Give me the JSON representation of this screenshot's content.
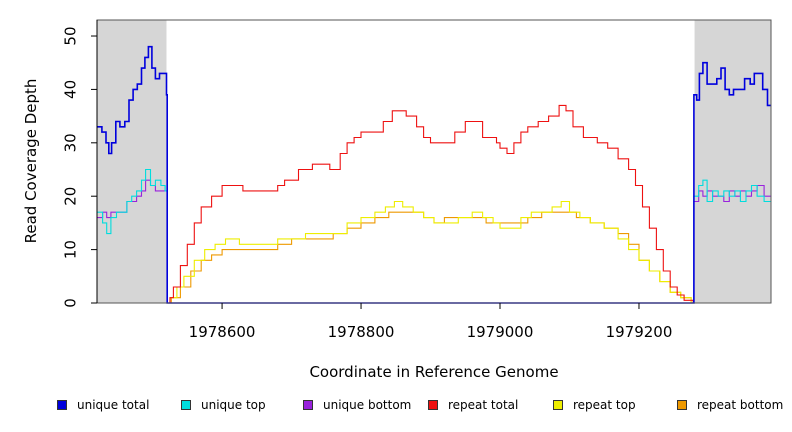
{
  "chart_data": {
    "type": "line",
    "title": "",
    "xlabel": "Coordinate in Reference Genome",
    "ylabel": "Read Coverage Depth",
    "xlim": [
      1978420,
      1979390
    ],
    "ylim": [
      0,
      53
    ],
    "x_ticks": [
      1978600,
      1978800,
      1979000,
      1979200
    ],
    "x_tick_labels": [
      "1978600",
      "1978800",
      "1979000",
      "1979200"
    ],
    "y_ticks": [
      0,
      10,
      20,
      30,
      40,
      50
    ],
    "y_tick_labels": [
      "0",
      "10",
      "20",
      "30",
      "40",
      "50"
    ],
    "grid": false,
    "shaded_regions": [
      [
        1978420,
        1978520
      ],
      [
        1979280,
        1979390
      ]
    ],
    "legend_position": "bottom",
    "series": [
      {
        "name": "unique total",
        "color": "#0000dd",
        "points": [
          [
            1978420,
            33
          ],
          [
            1978427,
            32
          ],
          [
            1978433,
            30
          ],
          [
            1978437,
            28
          ],
          [
            1978441,
            30
          ],
          [
            1978447,
            34
          ],
          [
            1978453,
            33
          ],
          [
            1978460,
            34
          ],
          [
            1978466,
            38
          ],
          [
            1978472,
            40
          ],
          [
            1978478,
            41
          ],
          [
            1978484,
            44
          ],
          [
            1978489,
            46
          ],
          [
            1978494,
            48
          ],
          [
            1978499,
            44
          ],
          [
            1978504,
            42
          ],
          [
            1978510,
            43
          ],
          [
            1978518,
            43
          ],
          [
            1978520,
            39
          ],
          [
            1978521,
            0
          ],
          [
            1979278,
            0
          ],
          [
            1979279,
            39
          ],
          [
            1979283,
            38
          ],
          [
            1979287,
            43
          ],
          [
            1979292,
            45
          ],
          [
            1979298,
            41
          ],
          [
            1979305,
            41
          ],
          [
            1979312,
            42
          ],
          [
            1979318,
            44
          ],
          [
            1979324,
            40
          ],
          [
            1979330,
            39
          ],
          [
            1979336,
            40
          ],
          [
            1979344,
            40
          ],
          [
            1979352,
            42
          ],
          [
            1979360,
            41
          ],
          [
            1979366,
            43
          ],
          [
            1979378,
            40
          ],
          [
            1979385,
            37
          ],
          [
            1979390,
            37
          ]
        ]
      },
      {
        "name": "unique top",
        "color": "#00dddd",
        "points": [
          [
            1978420,
            17
          ],
          [
            1978428,
            15
          ],
          [
            1978434,
            13
          ],
          [
            1978440,
            16
          ],
          [
            1978448,
            17
          ],
          [
            1978456,
            17
          ],
          [
            1978463,
            19
          ],
          [
            1978470,
            20
          ],
          [
            1978477,
            21
          ],
          [
            1978484,
            23
          ],
          [
            1978490,
            25
          ],
          [
            1978497,
            22
          ],
          [
            1978504,
            23
          ],
          [
            1978512,
            22
          ],
          [
            1978518,
            21
          ],
          [
            1978520,
            21
          ],
          [
            1978521,
            0
          ],
          [
            1979278,
            0
          ],
          [
            1979279,
            20
          ],
          [
            1979286,
            22
          ],
          [
            1979292,
            23
          ],
          [
            1979298,
            19
          ],
          [
            1979306,
            21
          ],
          [
            1979314,
            20
          ],
          [
            1979322,
            21
          ],
          [
            1979330,
            20
          ],
          [
            1979338,
            21
          ],
          [
            1979346,
            19
          ],
          [
            1979354,
            21
          ],
          [
            1979362,
            22
          ],
          [
            1979370,
            20
          ],
          [
            1979380,
            19
          ],
          [
            1979390,
            19
          ]
        ]
      },
      {
        "name": "unique bottom",
        "color": "#9922dd",
        "points": [
          [
            1978420,
            16
          ],
          [
            1978428,
            17
          ],
          [
            1978434,
            16
          ],
          [
            1978440,
            17
          ],
          [
            1978448,
            17
          ],
          [
            1978456,
            17
          ],
          [
            1978463,
            19
          ],
          [
            1978470,
            19
          ],
          [
            1978477,
            20
          ],
          [
            1978484,
            21
          ],
          [
            1978490,
            23
          ],
          [
            1978497,
            22
          ],
          [
            1978504,
            21
          ],
          [
            1978512,
            21
          ],
          [
            1978520,
            21
          ],
          [
            1978521,
            0
          ],
          [
            1979278,
            0
          ],
          [
            1979279,
            19
          ],
          [
            1979286,
            21
          ],
          [
            1979292,
            20
          ],
          [
            1979298,
            21
          ],
          [
            1979306,
            20
          ],
          [
            1979314,
            20
          ],
          [
            1979322,
            19
          ],
          [
            1979330,
            21
          ],
          [
            1979338,
            20
          ],
          [
            1979346,
            21
          ],
          [
            1979354,
            20
          ],
          [
            1979362,
            21
          ],
          [
            1979370,
            22
          ],
          [
            1979380,
            20
          ],
          [
            1979390,
            20
          ]
        ]
      },
      {
        "name": "repeat total",
        "color": "#ee1111",
        "points": [
          [
            1978520,
            0
          ],
          [
            1978525,
            1
          ],
          [
            1978530,
            3
          ],
          [
            1978540,
            7
          ],
          [
            1978550,
            11
          ],
          [
            1978560,
            15
          ],
          [
            1978570,
            18
          ],
          [
            1978585,
            20
          ],
          [
            1978600,
            22
          ],
          [
            1978615,
            22
          ],
          [
            1978630,
            21
          ],
          [
            1978650,
            21
          ],
          [
            1978670,
            21
          ],
          [
            1978680,
            22
          ],
          [
            1978690,
            23
          ],
          [
            1978710,
            25
          ],
          [
            1978730,
            26
          ],
          [
            1978740,
            26
          ],
          [
            1978755,
            25
          ],
          [
            1978770,
            28
          ],
          [
            1978780,
            30
          ],
          [
            1978790,
            31
          ],
          [
            1978800,
            32
          ],
          [
            1978810,
            32
          ],
          [
            1978820,
            32
          ],
          [
            1978832,
            34
          ],
          [
            1978845,
            36
          ],
          [
            1978855,
            36
          ],
          [
            1978865,
            35
          ],
          [
            1978880,
            33
          ],
          [
            1978890,
            31
          ],
          [
            1978900,
            30
          ],
          [
            1978910,
            30
          ],
          [
            1978920,
            30
          ],
          [
            1978935,
            32
          ],
          [
            1978950,
            34
          ],
          [
            1978962,
            34
          ],
          [
            1978975,
            31
          ],
          [
            1978985,
            31
          ],
          [
            1978995,
            30
          ],
          [
            1979000,
            29
          ],
          [
            1979010,
            28
          ],
          [
            1979020,
            30
          ],
          [
            1979030,
            32
          ],
          [
            1979040,
            33
          ],
          [
            1979055,
            34
          ],
          [
            1979070,
            35
          ],
          [
            1979085,
            37
          ],
          [
            1979095,
            36
          ],
          [
            1979105,
            33
          ],
          [
            1979120,
            31
          ],
          [
            1979140,
            30
          ],
          [
            1979155,
            29
          ],
          [
            1979170,
            27
          ],
          [
            1979185,
            25
          ],
          [
            1979195,
            22
          ],
          [
            1979205,
            18
          ],
          [
            1979215,
            14
          ],
          [
            1979225,
            10
          ],
          [
            1979235,
            6
          ],
          [
            1979245,
            3
          ],
          [
            1979255,
            1.5
          ],
          [
            1979265,
            0.5
          ],
          [
            1979278,
            0
          ]
        ]
      },
      {
        "name": "repeat top",
        "color": "#eeee00",
        "points": [
          [
            1978520,
            0
          ],
          [
            1978525,
            1
          ],
          [
            1978535,
            3
          ],
          [
            1978545,
            5
          ],
          [
            1978560,
            8
          ],
          [
            1978575,
            10
          ],
          [
            1978590,
            11
          ],
          [
            1978605,
            12
          ],
          [
            1978625,
            11
          ],
          [
            1978645,
            11
          ],
          [
            1978665,
            11
          ],
          [
            1978680,
            12
          ],
          [
            1978700,
            12
          ],
          [
            1978720,
            13
          ],
          [
            1978740,
            13
          ],
          [
            1978760,
            13
          ],
          [
            1978780,
            15
          ],
          [
            1978800,
            16
          ],
          [
            1978820,
            17
          ],
          [
            1978835,
            18
          ],
          [
            1978848,
            19
          ],
          [
            1978860,
            18
          ],
          [
            1978875,
            17
          ],
          [
            1978890,
            16
          ],
          [
            1978905,
            15
          ],
          [
            1978920,
            15
          ],
          [
            1978940,
            16
          ],
          [
            1978960,
            17
          ],
          [
            1978975,
            16
          ],
          [
            1978990,
            15
          ],
          [
            1979000,
            14
          ],
          [
            1979015,
            14
          ],
          [
            1979030,
            16
          ],
          [
            1979045,
            17
          ],
          [
            1979060,
            17
          ],
          [
            1979075,
            18
          ],
          [
            1979088,
            19
          ],
          [
            1979100,
            17
          ],
          [
            1979115,
            16
          ],
          [
            1979130,
            15
          ],
          [
            1979150,
            14
          ],
          [
            1979170,
            12
          ],
          [
            1979185,
            10
          ],
          [
            1979200,
            8
          ],
          [
            1979215,
            6
          ],
          [
            1979230,
            4
          ],
          [
            1979245,
            2
          ],
          [
            1979260,
            1
          ],
          [
            1979275,
            0
          ]
        ]
      },
      {
        "name": "repeat bottom",
        "color": "#ee9900",
        "points": [
          [
            1978420,
            0
          ],
          [
            1978520,
            0
          ],
          [
            1978527,
            1
          ],
          [
            1978540,
            3
          ],
          [
            1978555,
            6
          ],
          [
            1978570,
            8
          ],
          [
            1978585,
            9
          ],
          [
            1978600,
            10
          ],
          [
            1978620,
            10
          ],
          [
            1978640,
            10
          ],
          [
            1978660,
            10
          ],
          [
            1978680,
            11
          ],
          [
            1978700,
            12
          ],
          [
            1978720,
            12
          ],
          [
            1978740,
            12
          ],
          [
            1978760,
            13
          ],
          [
            1978780,
            14
          ],
          [
            1978800,
            15
          ],
          [
            1978820,
            16
          ],
          [
            1978840,
            17
          ],
          [
            1978855,
            17
          ],
          [
            1978870,
            17
          ],
          [
            1978890,
            16
          ],
          [
            1978905,
            15
          ],
          [
            1978920,
            16
          ],
          [
            1978940,
            16
          ],
          [
            1978960,
            16
          ],
          [
            1978980,
            15
          ],
          [
            1979000,
            15
          ],
          [
            1979020,
            15
          ],
          [
            1979040,
            16
          ],
          [
            1979060,
            17
          ],
          [
            1979080,
            17
          ],
          [
            1979095,
            17
          ],
          [
            1979110,
            16
          ],
          [
            1979130,
            15
          ],
          [
            1979150,
            14
          ],
          [
            1979170,
            13
          ],
          [
            1979185,
            11
          ],
          [
            1979200,
            8
          ],
          [
            1979215,
            6
          ],
          [
            1979230,
            4
          ],
          [
            1979245,
            2
          ],
          [
            1979260,
            1
          ],
          [
            1979275,
            0
          ],
          [
            1979390,
            0
          ]
        ]
      }
    ]
  }
}
